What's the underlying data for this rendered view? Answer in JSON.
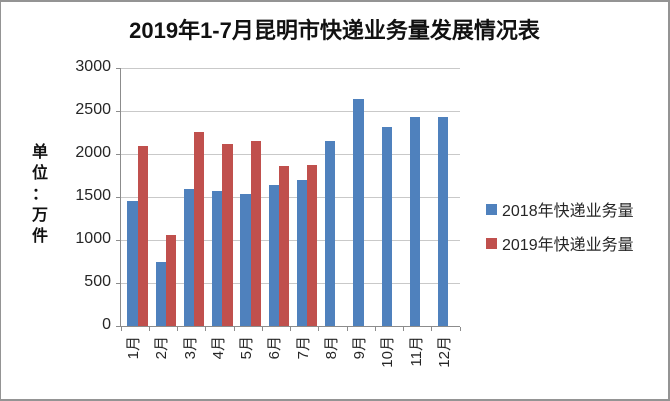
{
  "title": "2019年1-7月昆明市快递业务量发展情况表",
  "y_axis_title_chars": [
    "单",
    "位",
    "：",
    "万",
    "件"
  ],
  "chart_data": {
    "type": "bar",
    "title": "2019年1-7月昆明市快递业务量发展情况表",
    "ylabel": "单位：万件",
    "categories": [
      "1月",
      "2月",
      "3月",
      "4月",
      "5月",
      "6月",
      "7月",
      "8月",
      "9月",
      "10月",
      "11月",
      "12月"
    ],
    "series": [
      {
        "name": "2018年快递业务量",
        "color": "#4F81BD",
        "values": [
          1450,
          740,
          1590,
          1570,
          1540,
          1640,
          1700,
          2150,
          2640,
          2310,
          2430,
          2430
        ]
      },
      {
        "name": "2019年快递业务量",
        "color": "#C0504D",
        "values": [
          2090,
          1060,
          2255,
          2120,
          2150,
          1860,
          1870,
          null,
          null,
          null,
          null,
          null
        ]
      }
    ],
    "ylim": [
      0,
      3000
    ],
    "y_ticks": [
      0,
      500,
      1000,
      1500,
      2000,
      2500,
      3000
    ],
    "grid": true,
    "legend_position": "right"
  }
}
